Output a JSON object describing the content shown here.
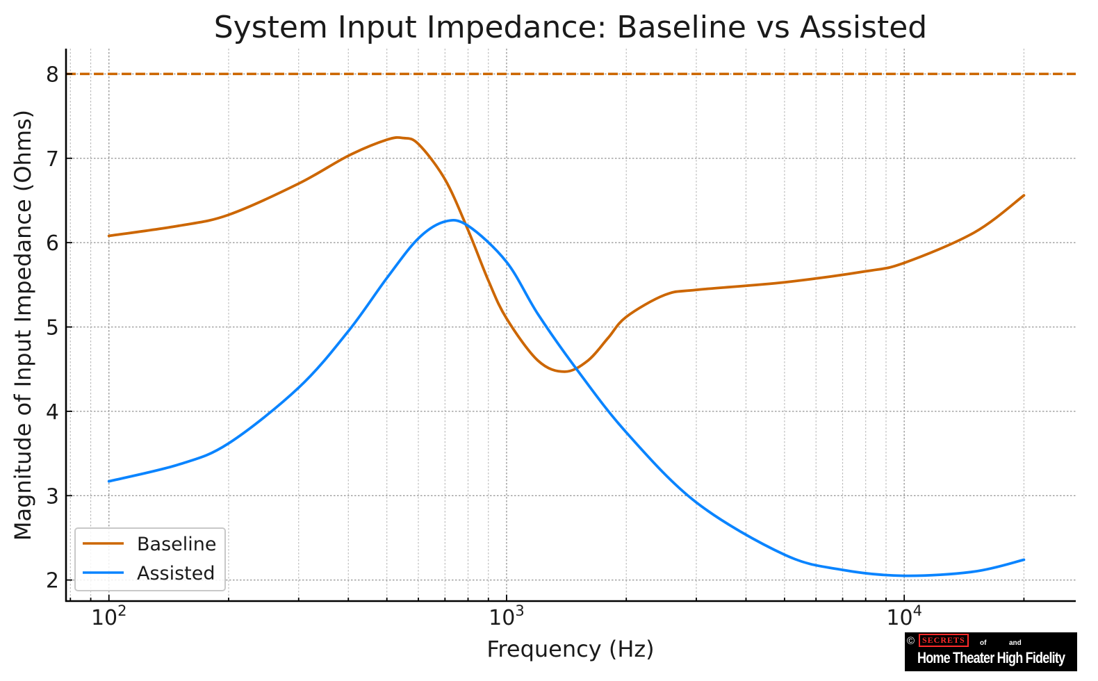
{
  "chart_data": {
    "type": "line",
    "title": "System Input Impedance: Baseline vs Assisted",
    "xlabel": "Frequency (Hz)",
    "ylabel": "Magnitude of Input Impedance (Ohms)",
    "xscale": "log",
    "xlim": [
      78,
      27000
    ],
    "ylim": [
      1.75,
      8.3
    ],
    "yticks": [
      2,
      3,
      4,
      5,
      6,
      7,
      8
    ],
    "xticks": [
      {
        "value": 100,
        "base": "10",
        "exp": "2"
      },
      {
        "value": 1000,
        "base": "10",
        "exp": "3"
      },
      {
        "value": 10000,
        "base": "10",
        "exp": "4"
      }
    ],
    "grid": true,
    "reference_line": {
      "y": 8,
      "style": "dashed",
      "color": "#CC6600"
    },
    "legend_position": "bottom-left",
    "series": [
      {
        "name": "Baseline",
        "color": "#CC6600",
        "x": [
          100,
          150,
          200,
          300,
          400,
          500,
          550,
          600,
          700,
          800,
          900,
          1000,
          1200,
          1400,
          1600,
          1800,
          2000,
          2500,
          3000,
          5000,
          8000,
          10000,
          15000,
          20000
        ],
        "y": [
          6.08,
          6.2,
          6.33,
          6.7,
          7.03,
          7.22,
          7.24,
          7.17,
          6.75,
          6.15,
          5.55,
          5.1,
          4.6,
          4.47,
          4.6,
          4.87,
          5.12,
          5.38,
          5.44,
          5.53,
          5.66,
          5.76,
          6.12,
          6.56
        ]
      },
      {
        "name": "Assisted",
        "color": "#0A84FF",
        "x": [
          100,
          150,
          200,
          300,
          400,
          500,
          600,
          700,
          800,
          1000,
          1200,
          1500,
          2000,
          3000,
          5000,
          7000,
          10000,
          15000,
          20000
        ],
        "y": [
          3.17,
          3.37,
          3.62,
          4.28,
          4.95,
          5.58,
          6.05,
          6.25,
          6.2,
          5.77,
          5.15,
          4.5,
          3.75,
          2.92,
          2.3,
          2.12,
          2.05,
          2.1,
          2.24
        ]
      }
    ]
  },
  "watermark": {
    "copyright": "©",
    "secrets": "SECRETS",
    "of": "of",
    "and": "and",
    "main": "Home Theater High Fidelity"
  }
}
